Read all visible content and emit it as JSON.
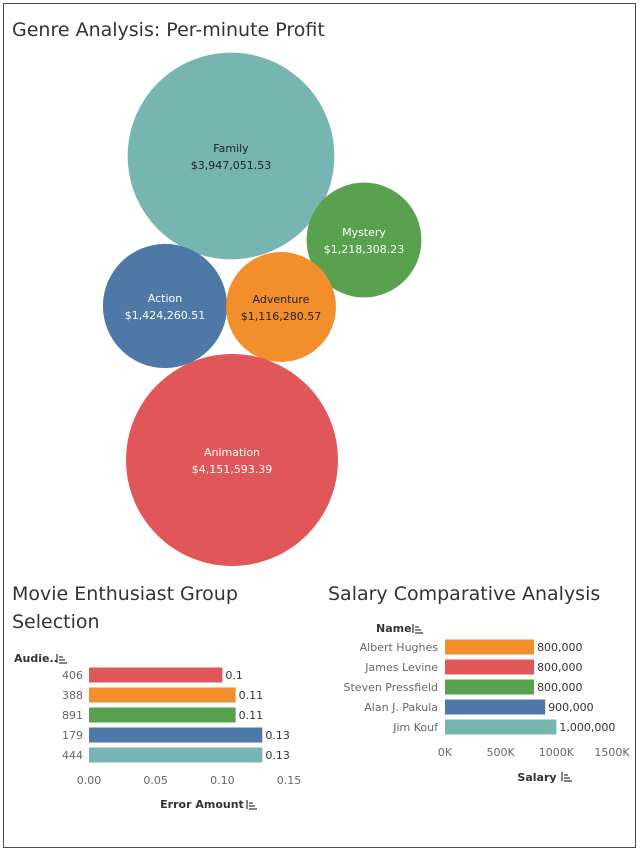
{
  "colors": {
    "teal": "#77b6b0",
    "green": "#59a14f",
    "blue": "#4e79a7",
    "orange": "#f28e2b",
    "red": "#e15759"
  },
  "chart_data": [
    {
      "type": "bubble",
      "title": "Genre Analysis: Per-minute Profit",
      "bubbles": [
        {
          "name": "Family",
          "label": "$3,947,051.53",
          "value": 3947051.53,
          "color": "#77b6b0",
          "text_color": "#222222"
        },
        {
          "name": "Mystery",
          "label": "$1,218,308.23",
          "value": 1218308.23,
          "color": "#59a14f",
          "text_color": "#ffffff"
        },
        {
          "name": "Action",
          "label": "$1,424,260.51",
          "value": 1424260.51,
          "color": "#4e79a7",
          "text_color": "#ffffff"
        },
        {
          "name": "Adventure",
          "label": "$1,116,280.57",
          "value": 1116280.57,
          "color": "#f28e2b",
          "text_color": "#222222"
        },
        {
          "name": "Animation",
          "label": "$4,151,593.39",
          "value": 4151593.39,
          "color": "#e15759",
          "text_color": "#ffffff"
        }
      ]
    },
    {
      "type": "bar",
      "orientation": "horizontal",
      "title_lines": [
        "Movie Enthusiast Group",
        "Selection"
      ],
      "row_header": "Audie..",
      "categories": [
        "406",
        "388",
        "891",
        "179",
        "444"
      ],
      "values": [
        0.1,
        0.11,
        0.11,
        0.13,
        0.13
      ],
      "value_labels": [
        "0.1",
        "0.11",
        "0.11",
        "0.13",
        "0.13"
      ],
      "colors": [
        "#e15759",
        "#f28e2b",
        "#59a14f",
        "#4e79a7",
        "#77b6b0"
      ],
      "xlabel": "Error Amount",
      "xlim": [
        0,
        0.15
      ],
      "xticks": [
        "0.00",
        "0.05",
        "0.10",
        "0.15"
      ]
    },
    {
      "type": "bar",
      "orientation": "horizontal",
      "title": "Salary Comparative Analysis",
      "row_header": "Name",
      "categories": [
        "Albert Hughes",
        "James Levine",
        "Steven Pressfield",
        "Alan J. Pakula",
        "Jim Kouf"
      ],
      "values": [
        800000,
        800000,
        800000,
        900000,
        1000000
      ],
      "value_labels": [
        "800,000",
        "800,000",
        "800,000",
        "900,000",
        "1,000,000"
      ],
      "colors": [
        "#f28e2b",
        "#e15759",
        "#59a14f",
        "#4e79a7",
        "#77b6b0"
      ],
      "xlabel": "Salary",
      "xlim": [
        0,
        1500000
      ],
      "xticks": [
        "0K",
        "500K",
        "1000K",
        "1500K"
      ]
    }
  ]
}
